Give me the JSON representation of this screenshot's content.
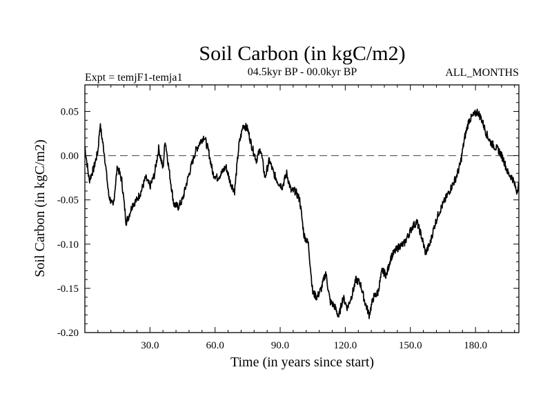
{
  "chart_data": {
    "type": "line",
    "title": "Soil Carbon (in kgC/m2)",
    "subtitle_left": "Expt = temjF1-temja1",
    "subtitle_center": "04.5kyr BP - 00.0kyr BP",
    "subtitle_right": "ALL_MONTHS",
    "xlabel": "Time (in years since start)",
    "ylabel": "Soil Carbon (in kgC/m2)",
    "xlim": [
      0,
      200
    ],
    "ylim": [
      -0.2,
      0.08
    ],
    "xticks": [
      30,
      60,
      90,
      120,
      150,
      180
    ],
    "xtick_labels": [
      "30.0",
      "60.0",
      "90.0",
      "120.0",
      "150.0",
      "180.0"
    ],
    "yticks": [
      0.05,
      0.0,
      -0.05,
      -0.1,
      -0.15,
      -0.2
    ],
    "ytick_labels": [
      "0.05",
      "0.00",
      "-0.05",
      "-0.10",
      "-0.15",
      "-0.20"
    ],
    "reference_line": 0.0,
    "series": [
      {
        "name": "Soil Carbon",
        "x": [
          0,
          2,
          4,
          6,
          7,
          9,
          11,
          13,
          15,
          17,
          19,
          20,
          22,
          24,
          26,
          28,
          30,
          32,
          34,
          36,
          37,
          39,
          41,
          43,
          45,
          47,
          49,
          51,
          53,
          55,
          57,
          59,
          61,
          63,
          65,
          67,
          69,
          71,
          73,
          75,
          77,
          79,
          81,
          83,
          85,
          87,
          89,
          91,
          93,
          95,
          97,
          99,
          101,
          103,
          105,
          107,
          109,
          111,
          113,
          115,
          117,
          119,
          121,
          123,
          125,
          127,
          129,
          131,
          133,
          135,
          137,
          139,
          141,
          143,
          145,
          147,
          149,
          151,
          153,
          155,
          157,
          159,
          161,
          163,
          165,
          167,
          169,
          171,
          173,
          175,
          177,
          179,
          181,
          183,
          185,
          187,
          189,
          191,
          193,
          195,
          197,
          199,
          200
        ],
        "values": [
          0.01,
          -0.028,
          -0.015,
          0.005,
          0.035,
          0.002,
          -0.045,
          -0.058,
          -0.012,
          -0.028,
          -0.075,
          -0.07,
          -0.055,
          -0.05,
          -0.04,
          -0.025,
          -0.035,
          -0.022,
          0.008,
          -0.015,
          0.018,
          -0.02,
          -0.055,
          -0.058,
          -0.05,
          -0.03,
          -0.012,
          0.005,
          0.015,
          0.022,
          0.005,
          -0.02,
          -0.025,
          -0.02,
          -0.012,
          -0.03,
          -0.04,
          0.012,
          0.035,
          0.03,
          0.01,
          -0.005,
          0.008,
          -0.025,
          -0.005,
          -0.02,
          -0.03,
          -0.035,
          -0.02,
          -0.04,
          -0.04,
          -0.05,
          -0.09,
          -0.1,
          -0.155,
          -0.16,
          -0.15,
          -0.132,
          -0.165,
          -0.17,
          -0.182,
          -0.16,
          -0.172,
          -0.158,
          -0.14,
          -0.145,
          -0.165,
          -0.18,
          -0.16,
          -0.155,
          -0.13,
          -0.135,
          -0.115,
          -0.108,
          -0.102,
          -0.1,
          -0.09,
          -0.08,
          -0.075,
          -0.09,
          -0.11,
          -0.1,
          -0.08,
          -0.065,
          -0.055,
          -0.045,
          -0.035,
          -0.025,
          -0.01,
          0.02,
          0.04,
          0.045,
          0.05,
          0.04,
          0.025,
          0.015,
          0.01,
          0.005,
          -0.005,
          -0.02,
          -0.025,
          -0.04,
          -0.032
        ]
      }
    ]
  }
}
